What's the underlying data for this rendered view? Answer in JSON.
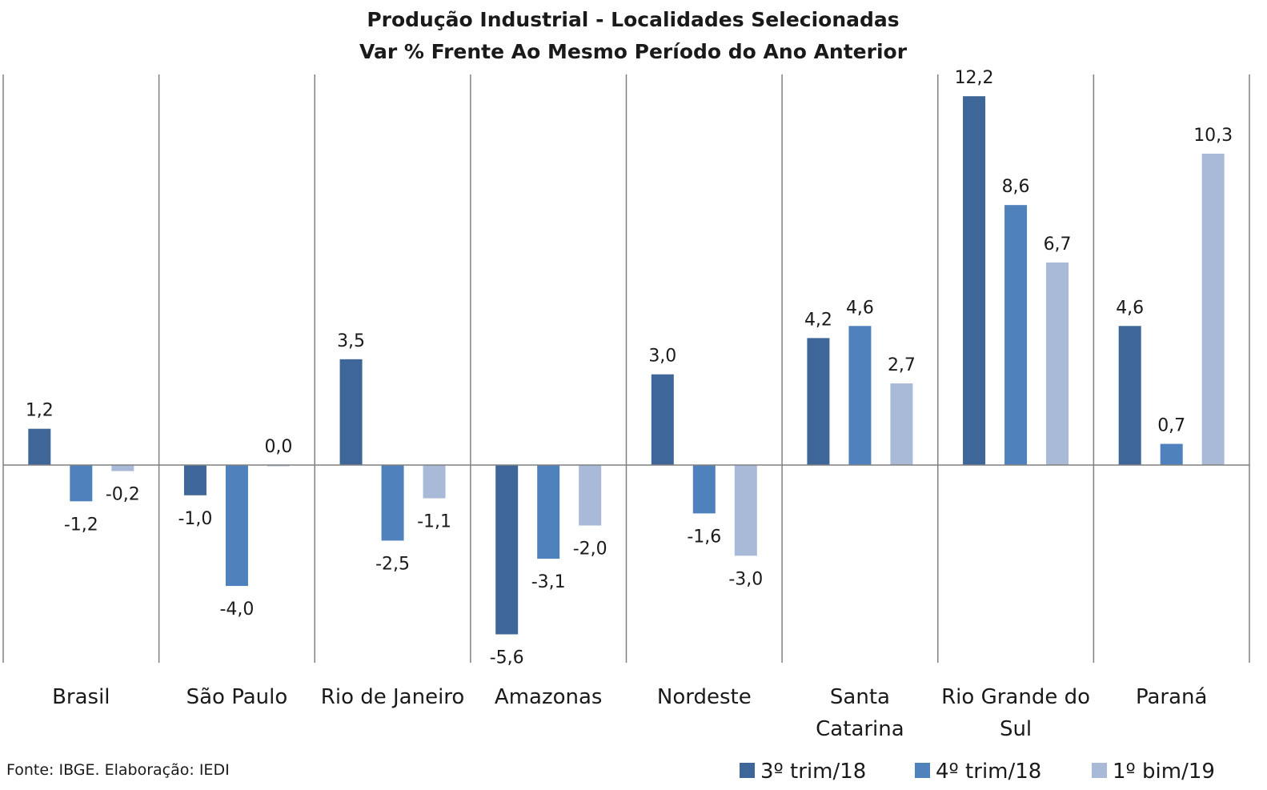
{
  "chart_data": {
    "type": "bar",
    "title": "Produção Industrial - Localidades Selecionadas",
    "subtitle": "Var % Frente Ao Mesmo Período do Ano Anterior",
    "categories": [
      "Brasil",
      "São Paulo",
      "Rio de Janeiro",
      "Amazonas",
      "Nordeste",
      "Santa Catarina",
      "Rio Grande do Sul",
      "Paraná"
    ],
    "category_lines": [
      [
        "Brasil"
      ],
      [
        "São Paulo"
      ],
      [
        "Rio de Janeiro"
      ],
      [
        "Amazonas"
      ],
      [
        "Nordeste"
      ],
      [
        "Santa",
        "Catarina"
      ],
      [
        "Rio Grande do",
        "Sul"
      ],
      [
        "Paraná"
      ]
    ],
    "series": [
      {
        "name": "3º trim/18",
        "color": "#3E6698",
        "values": [
          1.2,
          -1.0,
          3.5,
          -5.6,
          3.0,
          4.2,
          12.2,
          4.6
        ],
        "labels": [
          "1,2",
          "-1,0",
          "3,5",
          "-5,6",
          "3,0",
          "4,2",
          "12,2",
          "4,6"
        ]
      },
      {
        "name": "4º trim/18",
        "color": "#4F81BD",
        "values": [
          -1.2,
          -4.0,
          -2.5,
          -3.1,
          -1.6,
          4.6,
          8.6,
          0.7
        ],
        "labels": [
          "-1,2",
          "-4,0",
          "-2,5",
          "-3,1",
          "-1,6",
          "4,6",
          "8,6",
          "0,7"
        ]
      },
      {
        "name": "1º bim/19",
        "color": "#A9BAD8",
        "values": [
          -0.2,
          0.0,
          -1.1,
          -2.0,
          -3.0,
          2.7,
          6.7,
          10.3
        ],
        "labels": [
          "-0,2",
          "0,0",
          "-1,1",
          "-2,0",
          "-3,0",
          "2,7",
          "6,7",
          "10,3"
        ]
      }
    ],
    "ylim": [
      -6.5,
      12.9
    ],
    "grid": false,
    "legend_position": "bottom-right"
  },
  "footer": {
    "source": "Fonte: IBGE. Elaboração: IEDI"
  },
  "colors": {
    "axis": "#808080",
    "text": "#1a1a1a"
  }
}
